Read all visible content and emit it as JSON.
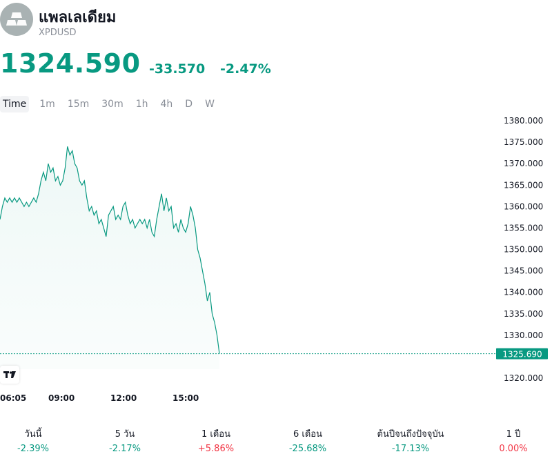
{
  "header": {
    "name": "แพลเลเดียม",
    "ticker": "XPDUSD",
    "icon": "palladium-bars-icon"
  },
  "quote": {
    "price": "1324.590",
    "change": "-33.570",
    "change_percent": "-2.47%"
  },
  "tabs": [
    "Time",
    "1m",
    "15m",
    "30m",
    "1h",
    "4h",
    "D",
    "W"
  ],
  "active_tab": "Time",
  "colors": {
    "accent": "#089981",
    "negative_red": "#f23645",
    "label_bg": "#089981"
  },
  "chart_data": {
    "type": "area",
    "y_ticks": [
      "1380.000",
      "1375.000",
      "1370.000",
      "1365.000",
      "1360.000",
      "1355.000",
      "1350.000",
      "1345.000",
      "1340.000",
      "1335.000",
      "1330.000",
      "1320.000"
    ],
    "x_ticks": [
      "06:05",
      "09:00",
      "12:00",
      "15:00"
    ],
    "ylim": [
      1318,
      1380
    ],
    "last_price_label": "1325.690",
    "last_price": 1325.69,
    "series": [
      {
        "values": [
          1357,
          1360,
          1362,
          1361,
          1362,
          1361,
          1362,
          1361,
          1362,
          1361,
          1360,
          1361,
          1360,
          1361,
          1362,
          1361,
          1363,
          1366,
          1368,
          1366,
          1370,
          1368,
          1369,
          1366,
          1367,
          1365,
          1366,
          1369,
          1374,
          1372,
          1373,
          1370,
          1369,
          1366,
          1365,
          1366,
          1362,
          1359,
          1360,
          1358,
          1359,
          1356,
          1357,
          1355,
          1353,
          1358,
          1359,
          1360,
          1357,
          1358,
          1357,
          1360,
          1361,
          1358,
          1356,
          1357,
          1355,
          1356,
          1357,
          1356,
          1357,
          1355,
          1357,
          1354,
          1353,
          1357,
          1360,
          1363,
          1359,
          1362,
          1359,
          1360,
          1355,
          1356,
          1354,
          1357,
          1355,
          1354,
          1356,
          1360,
          1358,
          1355,
          1350,
          1348,
          1345,
          1342,
          1338,
          1340,
          1335,
          1333,
          1330,
          1325.69
        ]
      }
    ],
    "grid": false
  },
  "performance": [
    {
      "label": "วันนี้",
      "value": "-2.39%",
      "trend": "neg"
    },
    {
      "label": "5 วัน",
      "value": "-2.17%",
      "trend": "neg"
    },
    {
      "label": "1 เดือน",
      "value": "+5.86%",
      "trend": "pos"
    },
    {
      "label": "6 เดือน",
      "value": "-25.68%",
      "trend": "neg"
    },
    {
      "label": "ต้นปีจนถึงปัจจุบัน",
      "value": "-17.13%",
      "trend": "neg"
    },
    {
      "label": "1 ปี",
      "value": "0.00%",
      "trend": "pos"
    }
  ],
  "tv_logo_text": "TV"
}
